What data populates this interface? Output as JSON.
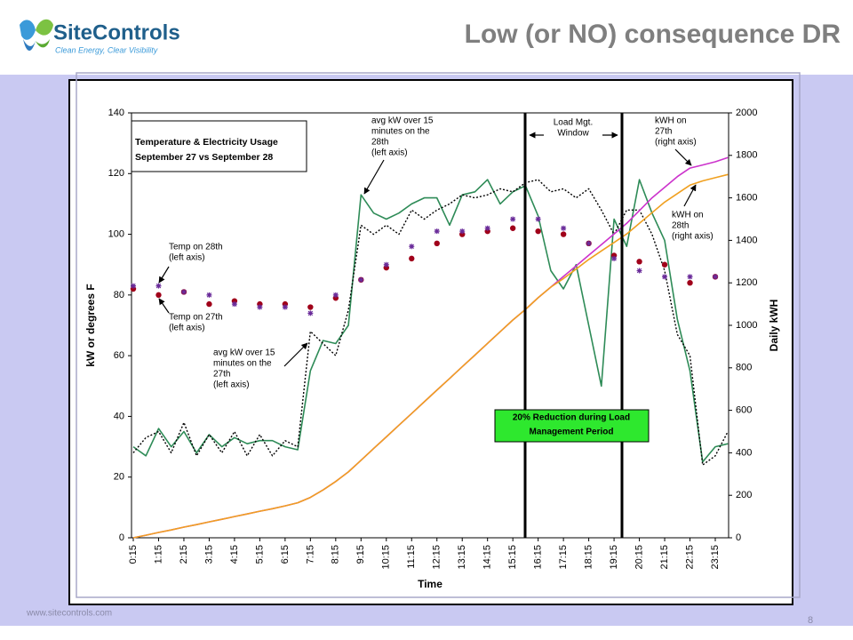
{
  "slide": {
    "logo_name": "SiteControls",
    "logo_tagline": "Clean Energy, Clear Visibility",
    "title": "Low (or NO) consequence DR",
    "footer": "www.sitecontrols.com",
    "page_number": "8"
  },
  "chart_data": {
    "type": "line",
    "title_lines": [
      "Temperature & Electricity Usage",
      "September 27 vs September 28"
    ],
    "x_label": "Time",
    "y_label": "kW or degrees F",
    "y2_label": "Daily kWH",
    "categories": [
      "0:15",
      null,
      "1:15",
      null,
      "2:15",
      null,
      "3:15",
      null,
      "4:15",
      null,
      "5:15",
      null,
      "6:15",
      null,
      "7:15",
      null,
      "8:15",
      null,
      "9:15",
      null,
      "10:15",
      null,
      "11:15",
      null,
      "12:15",
      null,
      "13:15",
      null,
      "14:15",
      null,
      "15:15",
      null,
      "16:15",
      null,
      "17:15",
      null,
      "18:15",
      null,
      "19:15",
      null,
      "20:15",
      null,
      "21:15",
      null,
      "22:15",
      null,
      "23:15",
      null
    ],
    "ylim": [
      0,
      140
    ],
    "yticks": [
      0,
      20,
      40,
      60,
      80,
      100,
      120,
      140
    ],
    "y2lim": [
      0,
      2000
    ],
    "y2ticks": [
      0,
      200,
      400,
      600,
      800,
      1000,
      1200,
      1400,
      1600,
      1800,
      2000
    ],
    "series": [
      {
        "color": "#2e8b57",
        "style": "solid",
        "axis": "y",
        "values": [
          30,
          27,
          36,
          30,
          35,
          28,
          34,
          30,
          33,
          31,
          32,
          32,
          30,
          29,
          55,
          65,
          64,
          70,
          113,
          107,
          105,
          107,
          110,
          112,
          112,
          103,
          113,
          114,
          118,
          110,
          114,
          116,
          106,
          88,
          82,
          90,
          70,
          50,
          105,
          96,
          118,
          107,
          98,
          72,
          55,
          25,
          30,
          31
        ]
      },
      {
        "color": "#000000",
        "style": "dotted",
        "axis": "y",
        "values": [
          28,
          33,
          35,
          28,
          38,
          27,
          34,
          28,
          35,
          27,
          34,
          27,
          32,
          30,
          68,
          64,
          60,
          75,
          103,
          100,
          103,
          100,
          108,
          105,
          108,
          110,
          113,
          112,
          113,
          115,
          114,
          117,
          118,
          114,
          115,
          112,
          115,
          108,
          100,
          108,
          108,
          100,
          88,
          67,
          60,
          24,
          27,
          35
        ]
      },
      {
        "color": "#cc33cc",
        "style": "solid",
        "axis": "y2",
        "values": [
          0,
          12,
          25,
          37,
          50,
          62,
          75,
          87,
          100,
          112,
          125,
          137,
          150,
          165,
          190,
          225,
          265,
          310,
          365,
          420,
          475,
          530,
          585,
          640,
          695,
          750,
          805,
          860,
          915,
          970,
          1025,
          1075,
          1130,
          1180,
          1230,
          1280,
          1330,
          1380,
          1430,
          1480,
          1540,
          1600,
          1650,
          1700,
          1740,
          1755,
          1770,
          1790
        ]
      },
      {
        "color": "#f0a020",
        "style": "solid",
        "axis": "y2",
        "values": [
          0,
          12,
          25,
          37,
          50,
          62,
          75,
          87,
          100,
          112,
          125,
          137,
          150,
          165,
          190,
          225,
          265,
          310,
          365,
          420,
          475,
          530,
          585,
          640,
          695,
          750,
          805,
          860,
          915,
          970,
          1025,
          1075,
          1130,
          1180,
          1220,
          1265,
          1310,
          1350,
          1390,
          1430,
          1480,
          1530,
          1580,
          1620,
          1660,
          1680,
          1695,
          1710
        ]
      },
      {
        "color": "#a0001a",
        "marker": "dot",
        "axis": "y",
        "values": [
          82,
          null,
          80,
          null,
          81,
          null,
          77,
          null,
          78,
          null,
          77,
          null,
          77,
          null,
          76,
          null,
          79,
          null,
          85,
          null,
          89,
          null,
          92,
          null,
          97,
          null,
          100,
          null,
          101,
          null,
          102,
          null,
          101,
          null,
          100,
          null,
          97,
          null,
          93,
          null,
          91,
          null,
          90,
          null,
          84,
          null,
          86,
          null
        ]
      },
      {
        "color": "#6a2c9a",
        "marker": "star",
        "axis": "y",
        "values": [
          83,
          null,
          83,
          null,
          81,
          null,
          80,
          null,
          77,
          null,
          76,
          null,
          76,
          null,
          74,
          null,
          80,
          null,
          85,
          null,
          90,
          null,
          96,
          null,
          101,
          null,
          101,
          null,
          102,
          null,
          105,
          null,
          105,
          null,
          102,
          null,
          97,
          null,
          92,
          null,
          88,
          null,
          86,
          null,
          86,
          null,
          86,
          null
        ]
      }
    ],
    "annotations": [
      {
        "lines": [
          "avg kW over 15",
          "minutes on the",
          "28th",
          "(left axis)"
        ]
      },
      {
        "lines": [
          "Load Mgt.",
          "Window"
        ]
      },
      {
        "lines": [
          "kWH on",
          "27th",
          "(right axis)"
        ]
      },
      {
        "lines": [
          "kWH on",
          "28th",
          "(right axis)"
        ]
      },
      {
        "lines": [
          "Temp on 28th",
          "(left axis)"
        ]
      },
      {
        "lines": [
          "Temp on 27th",
          "(left axis)"
        ]
      },
      {
        "lines": [
          "avg kW over 15",
          "minutes on the",
          "27th",
          "(left axis)"
        ]
      },
      {
        "lines": [
          "20% Reduction during Load",
          "Management Period"
        ]
      }
    ]
  }
}
